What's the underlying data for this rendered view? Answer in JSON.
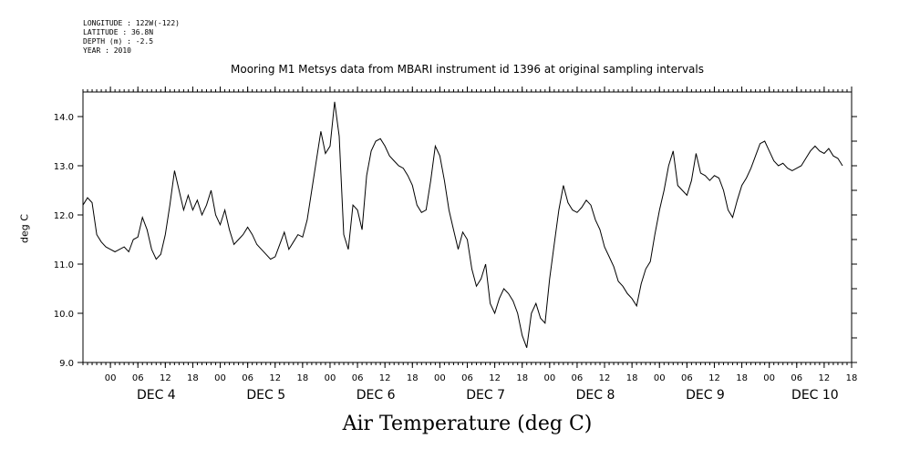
{
  "header_info": {
    "longitude": "LONGITUDE : 122W(-122)",
    "latitude": "LATITUDE : 36.8N",
    "depth": "DEPTH (m) : -2.5",
    "year": "YEAR : 2010"
  },
  "chart_data": {
    "type": "line",
    "title": "Mooring M1 Metsys data from MBARI instrument id 1396 at original sampling intervals",
    "xlabel": "Air Temperature (deg C)",
    "ylabel": "deg C",
    "ylim": [
      9.0,
      14.5
    ],
    "yticks": [
      "9.0",
      "10.0",
      "11.0",
      "12.0",
      "13.0",
      "14.0"
    ],
    "xrange_hours": [
      -6,
      162
    ],
    "x_hour_ticks": [
      "00",
      "06",
      "12",
      "18",
      "00",
      "06",
      "12",
      "18",
      "00",
      "06",
      "12",
      "18",
      "00",
      "06",
      "12",
      "18",
      "00",
      "06",
      "12",
      "18",
      "00",
      "06",
      "12",
      "18",
      "00",
      "06",
      "12",
      "18"
    ],
    "day_labels": [
      "DEC 4",
      "DEC 5",
      "DEC 6",
      "DEC 7",
      "DEC 8",
      "DEC 9",
      "DEC 10"
    ],
    "grid": false,
    "series": [
      {
        "values": [
          [
            -6,
            12.2
          ],
          [
            -5,
            12.35
          ],
          [
            -4,
            12.25
          ],
          [
            -3,
            11.6
          ],
          [
            -2,
            11.45
          ],
          [
            -1,
            11.35
          ],
          [
            0,
            11.3
          ],
          [
            1,
            11.25
          ],
          [
            2,
            11.3
          ],
          [
            3,
            11.35
          ],
          [
            4,
            11.25
          ],
          [
            5,
            11.5
          ],
          [
            6,
            11.55
          ],
          [
            7,
            11.95
          ],
          [
            8,
            11.7
          ],
          [
            9,
            11.3
          ],
          [
            10,
            11.1
          ],
          [
            11,
            11.2
          ],
          [
            12,
            11.6
          ],
          [
            13,
            12.2
          ],
          [
            14,
            12.9
          ],
          [
            15,
            12.5
          ],
          [
            16,
            12.1
          ],
          [
            17,
            12.4
          ],
          [
            18,
            12.1
          ],
          [
            19,
            12.3
          ],
          [
            20,
            12.0
          ],
          [
            21,
            12.2
          ],
          [
            22,
            12.5
          ],
          [
            23,
            12.0
          ],
          [
            24,
            11.8
          ],
          [
            25,
            12.1
          ],
          [
            26,
            11.7
          ],
          [
            27,
            11.4
          ],
          [
            28,
            11.5
          ],
          [
            29,
            11.6
          ],
          [
            30,
            11.75
          ],
          [
            31,
            11.6
          ],
          [
            32,
            11.4
          ],
          [
            33,
            11.3
          ],
          [
            34,
            11.2
          ],
          [
            35,
            11.1
          ],
          [
            36,
            11.15
          ],
          [
            37,
            11.4
          ],
          [
            38,
            11.65
          ],
          [
            39,
            11.3
          ],
          [
            40,
            11.45
          ],
          [
            41,
            11.6
          ],
          [
            42,
            11.55
          ],
          [
            43,
            11.9
          ],
          [
            44,
            12.5
          ],
          [
            45,
            13.1
          ],
          [
            46,
            13.7
          ],
          [
            47,
            13.25
          ],
          [
            48,
            13.4
          ],
          [
            49,
            14.3
          ],
          [
            50,
            13.6
          ],
          [
            51,
            11.6
          ],
          [
            52,
            11.3
          ],
          [
            53,
            12.2
          ],
          [
            54,
            12.1
          ],
          [
            55,
            11.7
          ],
          [
            56,
            12.8
          ],
          [
            57,
            13.3
          ],
          [
            58,
            13.5
          ],
          [
            59,
            13.55
          ],
          [
            60,
            13.4
          ],
          [
            61,
            13.2
          ],
          [
            62,
            13.1
          ],
          [
            63,
            13.0
          ],
          [
            64,
            12.95
          ],
          [
            65,
            12.8
          ],
          [
            66,
            12.6
          ],
          [
            67,
            12.2
          ],
          [
            68,
            12.05
          ],
          [
            69,
            12.1
          ],
          [
            70,
            12.7
          ],
          [
            71,
            13.4
          ],
          [
            72,
            13.2
          ],
          [
            73,
            12.7
          ],
          [
            74,
            12.1
          ],
          [
            75,
            11.7
          ],
          [
            76,
            11.3
          ],
          [
            77,
            11.65
          ],
          [
            78,
            11.5
          ],
          [
            79,
            10.9
          ],
          [
            80,
            10.55
          ],
          [
            81,
            10.7
          ],
          [
            82,
            11.0
          ],
          [
            83,
            10.2
          ],
          [
            84,
            10.0
          ],
          [
            85,
            10.3
          ],
          [
            86,
            10.5
          ],
          [
            87,
            10.4
          ],
          [
            88,
            10.25
          ],
          [
            89,
            10.0
          ],
          [
            90,
            9.55
          ],
          [
            91,
            9.3
          ],
          [
            92,
            10.0
          ],
          [
            93,
            10.2
          ],
          [
            94,
            9.9
          ],
          [
            95,
            9.8
          ],
          [
            96,
            10.7
          ],
          [
            97,
            11.4
          ],
          [
            98,
            12.1
          ],
          [
            99,
            12.6
          ],
          [
            100,
            12.25
          ],
          [
            101,
            12.1
          ],
          [
            102,
            12.05
          ],
          [
            103,
            12.15
          ],
          [
            104,
            12.3
          ],
          [
            105,
            12.2
          ],
          [
            106,
            11.9
          ],
          [
            107,
            11.7
          ],
          [
            108,
            11.35
          ],
          [
            109,
            11.15
          ],
          [
            110,
            10.95
          ],
          [
            111,
            10.65
          ],
          [
            112,
            10.55
          ],
          [
            113,
            10.4
          ],
          [
            114,
            10.3
          ],
          [
            115,
            10.15
          ],
          [
            116,
            10.6
          ],
          [
            117,
            10.9
          ],
          [
            118,
            11.05
          ],
          [
            119,
            11.6
          ],
          [
            120,
            12.1
          ],
          [
            121,
            12.5
          ],
          [
            122,
            13.0
          ],
          [
            123,
            13.3
          ],
          [
            124,
            12.6
          ],
          [
            125,
            12.5
          ],
          [
            126,
            12.4
          ],
          [
            127,
            12.7
          ],
          [
            128,
            13.25
          ],
          [
            129,
            12.85
          ],
          [
            130,
            12.8
          ],
          [
            131,
            12.7
          ],
          [
            132,
            12.8
          ],
          [
            133,
            12.75
          ],
          [
            134,
            12.5
          ],
          [
            135,
            12.1
          ],
          [
            136,
            11.95
          ],
          [
            137,
            12.3
          ],
          [
            138,
            12.6
          ],
          [
            139,
            12.75
          ],
          [
            140,
            12.95
          ],
          [
            141,
            13.2
          ],
          [
            142,
            13.45
          ],
          [
            143,
            13.5
          ],
          [
            144,
            13.3
          ],
          [
            145,
            13.1
          ],
          [
            146,
            13.0
          ],
          [
            147,
            13.05
          ],
          [
            148,
            12.95
          ],
          [
            149,
            12.9
          ],
          [
            150,
            12.95
          ],
          [
            151,
            13.0
          ],
          [
            152,
            13.15
          ],
          [
            153,
            13.3
          ],
          [
            154,
            13.4
          ],
          [
            155,
            13.3
          ],
          [
            156,
            13.25
          ],
          [
            157,
            13.35
          ],
          [
            158,
            13.2
          ],
          [
            159,
            13.15
          ],
          [
            160,
            13.0
          ]
        ]
      }
    ]
  }
}
